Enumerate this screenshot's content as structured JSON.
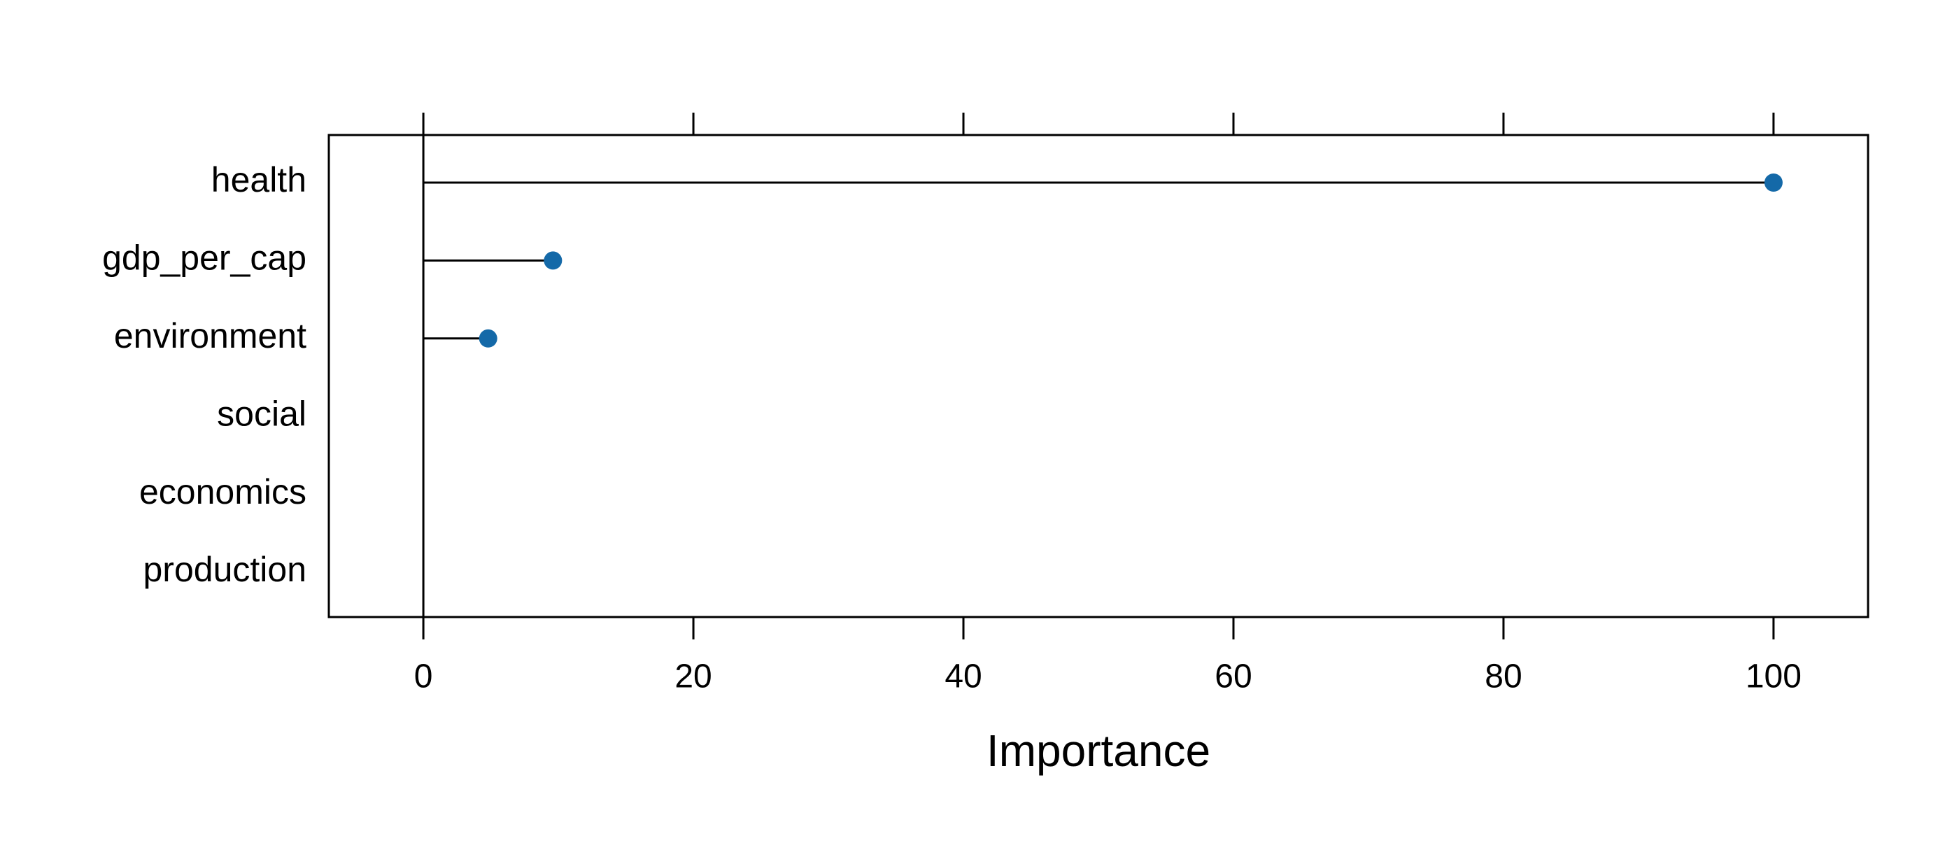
{
  "chart_data": {
    "type": "lollipop",
    "x_label": "Importance",
    "categories": [
      "health",
      "gdp_per_cap",
      "environment",
      "social",
      "economics",
      "production"
    ],
    "values": [
      100,
      9.6,
      4.8,
      null,
      null,
      null
    ],
    "color": "#1469a8",
    "xlim": [
      -7,
      107
    ],
    "xticks": [
      0,
      20,
      40,
      60,
      80,
      100
    ]
  }
}
